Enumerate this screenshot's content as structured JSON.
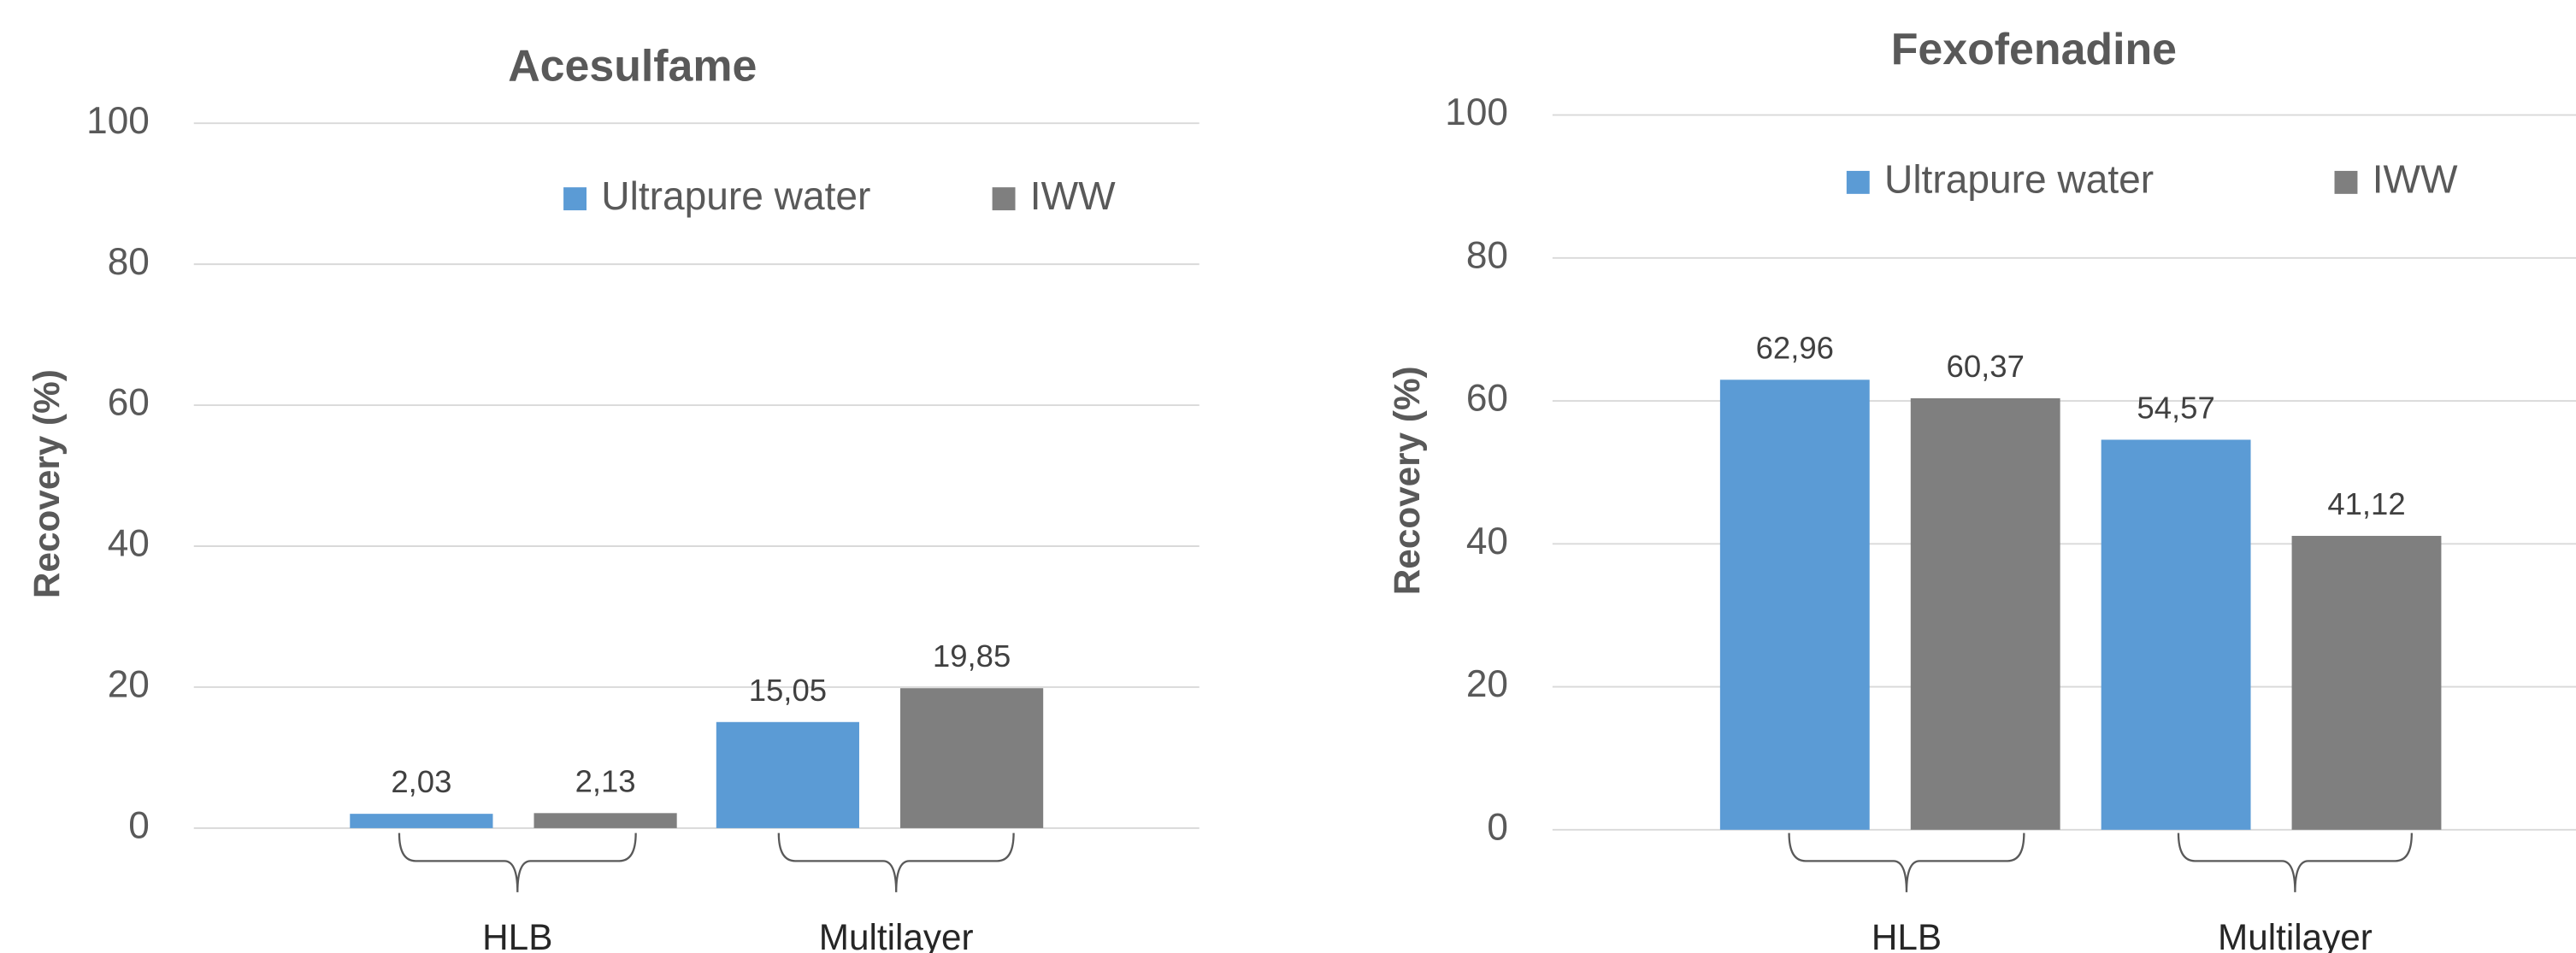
{
  "chart_data": [
    {
      "type": "bar",
      "title": "Acesulfame",
      "y_label": "Recovery (%)",
      "categories": [
        "HLB",
        "Multilayer"
      ],
      "series": [
        {
          "name": "Ultrapure water",
          "color": "#5b9bd5",
          "values": [
            2.03,
            15.05
          ],
          "value_labels": [
            "2,03",
            "15,05"
          ]
        },
        {
          "name": "IWW",
          "color": "#7f7f7f",
          "values": [
            2.13,
            19.85
          ],
          "value_labels": [
            "2,13",
            "19,85"
          ]
        }
      ],
      "ylim": [
        0,
        100
      ],
      "yticks": [
        0,
        20,
        40,
        60,
        80,
        100
      ],
      "grid": true,
      "legend": "top-right"
    },
    {
      "type": "bar",
      "title": "Fexofenadine",
      "y_label": "Recovery (%)",
      "categories": [
        "HLB",
        "Multilayer"
      ],
      "series": [
        {
          "name": "Ultrapure water",
          "color": "#5b9bd5",
          "values": [
            62.96,
            54.57
          ],
          "value_labels": [
            "62,96",
            "54,57"
          ]
        },
        {
          "name": "IWW",
          "color": "#7f7f7f",
          "values": [
            60.37,
            41.12
          ],
          "value_labels": [
            "60,37",
            "41,12"
          ]
        }
      ],
      "ylim": [
        0,
        100
      ],
      "yticks": [
        0,
        20,
        40,
        60,
        80,
        100
      ],
      "grid": true,
      "legend": "top-right"
    }
  ]
}
